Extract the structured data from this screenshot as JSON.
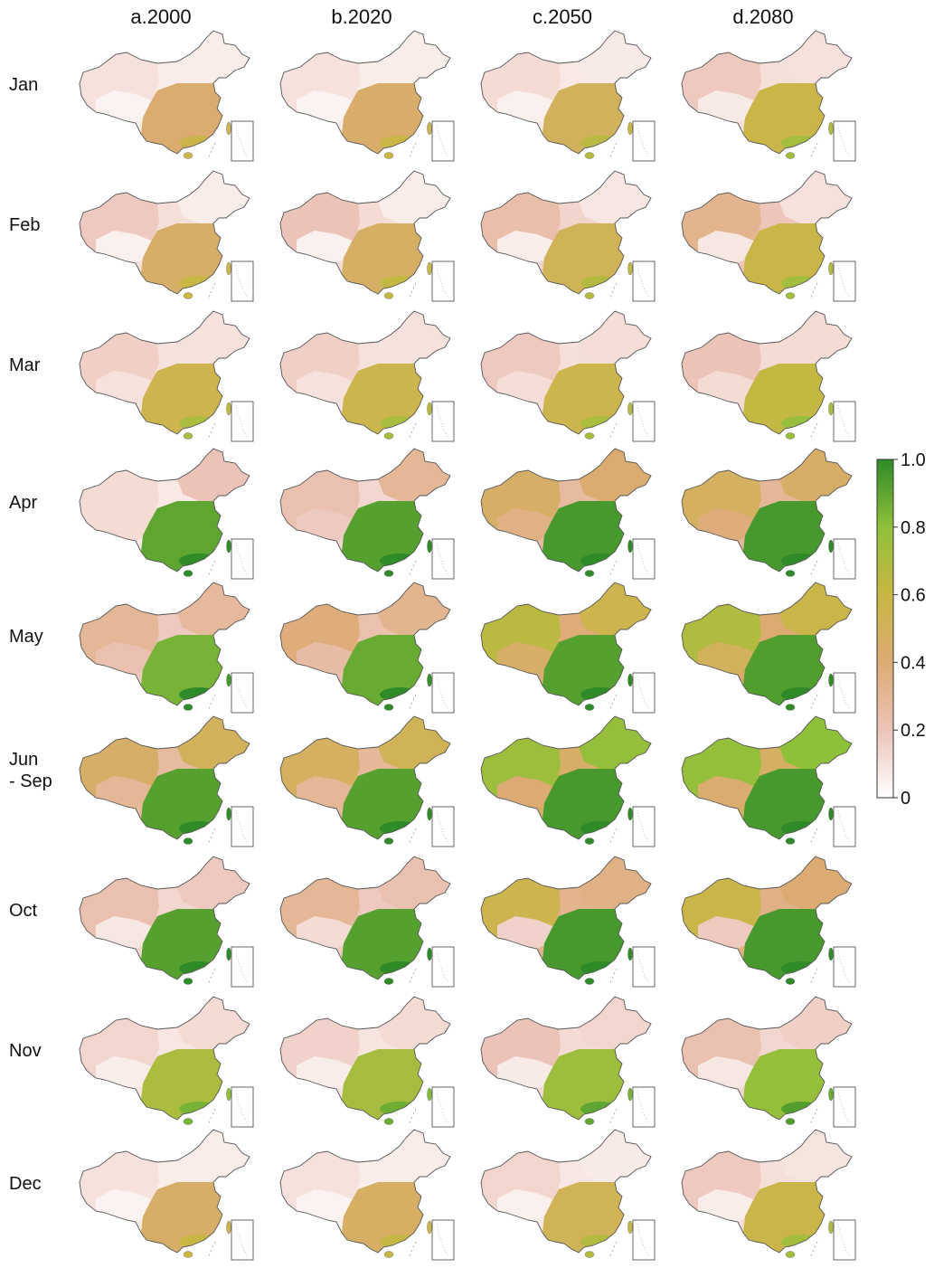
{
  "columns": [
    "a.2000",
    "b.2020",
    "c.2050",
    "d.2080"
  ],
  "rows": [
    "Jan",
    "Feb",
    "Mar",
    "Apr",
    "May",
    "Jun\n- Sep",
    "Oct",
    "Nov",
    "Dec"
  ],
  "colorbar": {
    "ticks": [
      "0",
      "0.2",
      "0.4",
      "0.6",
      "0.8",
      "1.0"
    ],
    "min": 0,
    "max": 1,
    "colors": [
      "#ffffff",
      "#ecc3b8",
      "#dcab74",
      "#c8b743",
      "#8fc03a",
      "#2f8a28"
    ]
  },
  "levels": [
    [
      [
        0.1,
        0.04,
        0.42,
        0.06
      ],
      [
        0.1,
        0.04,
        0.44,
        0.06
      ],
      [
        0.12,
        0.05,
        0.5,
        0.07
      ],
      [
        0.18,
        0.07,
        0.58,
        0.1
      ]
    ],
    [
      [
        0.18,
        0.05,
        0.45,
        0.06
      ],
      [
        0.2,
        0.05,
        0.47,
        0.06
      ],
      [
        0.24,
        0.06,
        0.52,
        0.08
      ],
      [
        0.32,
        0.08,
        0.58,
        0.1
      ]
    ],
    [
      [
        0.16,
        0.1,
        0.55,
        0.1
      ],
      [
        0.16,
        0.1,
        0.56,
        0.1
      ],
      [
        0.18,
        0.11,
        0.56,
        0.11
      ],
      [
        0.2,
        0.12,
        0.62,
        0.12
      ]
    ],
    [
      [
        0.12,
        0.12,
        0.9,
        0.2
      ],
      [
        0.22,
        0.18,
        0.92,
        0.3
      ],
      [
        0.45,
        0.35,
        0.95,
        0.42
      ],
      [
        0.48,
        0.38,
        0.95,
        0.45
      ]
    ],
    [
      [
        0.3,
        0.22,
        0.85,
        0.28
      ],
      [
        0.38,
        0.26,
        0.88,
        0.32
      ],
      [
        0.65,
        0.45,
        0.92,
        0.55
      ],
      [
        0.68,
        0.5,
        0.93,
        0.58
      ]
    ],
    [
      [
        0.45,
        0.3,
        0.92,
        0.5
      ],
      [
        0.48,
        0.3,
        0.92,
        0.52
      ],
      [
        0.75,
        0.4,
        0.95,
        0.78
      ],
      [
        0.78,
        0.42,
        0.95,
        0.8
      ]
    ],
    [
      [
        0.22,
        0.08,
        0.92,
        0.18
      ],
      [
        0.3,
        0.12,
        0.92,
        0.22
      ],
      [
        0.55,
        0.15,
        0.95,
        0.35
      ],
      [
        0.58,
        0.18,
        0.95,
        0.4
      ]
    ],
    [
      [
        0.14,
        0.06,
        0.7,
        0.12
      ],
      [
        0.15,
        0.06,
        0.72,
        0.12
      ],
      [
        0.2,
        0.07,
        0.75,
        0.14
      ],
      [
        0.22,
        0.08,
        0.78,
        0.16
      ]
    ],
    [
      [
        0.1,
        0.04,
        0.45,
        0.06
      ],
      [
        0.1,
        0.04,
        0.46,
        0.06
      ],
      [
        0.14,
        0.05,
        0.52,
        0.07
      ],
      [
        0.18,
        0.06,
        0.58,
        0.09
      ]
    ]
  ]
}
